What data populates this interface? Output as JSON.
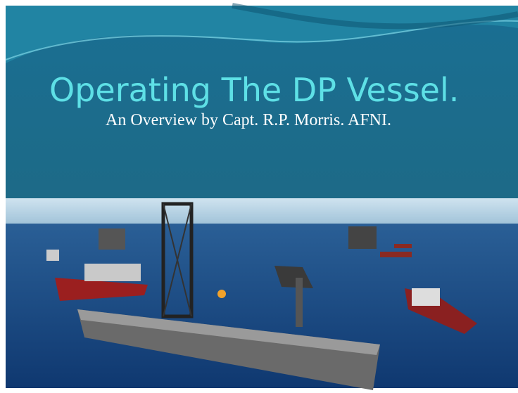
{
  "slide": {
    "title": "Operating The DP Vessel.",
    "subtitle": "An Overview by Capt. R.P. Morris. AFNI."
  }
}
